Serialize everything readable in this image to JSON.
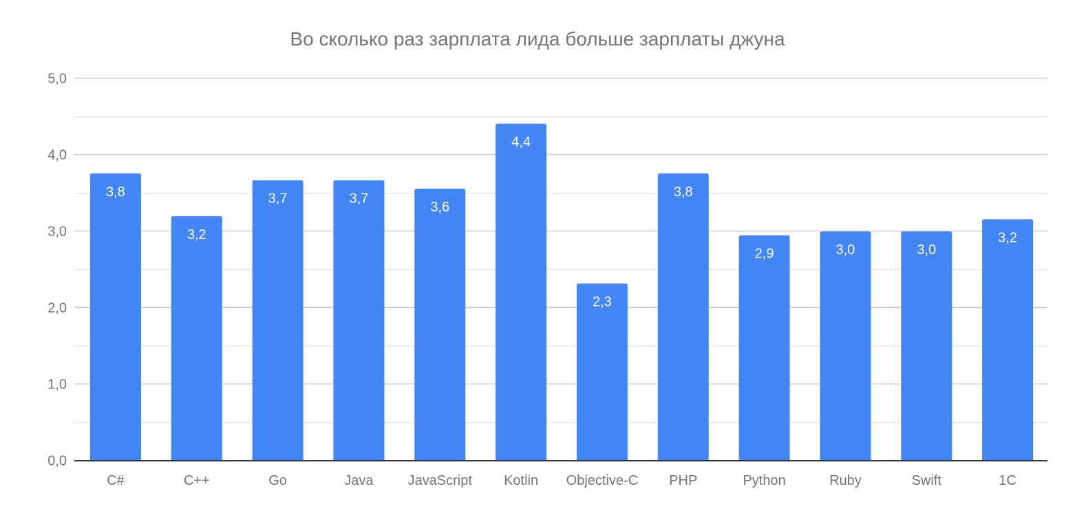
{
  "chart_data": {
    "type": "bar",
    "title": "Во сколько раз зарплата лида больше зарплаты джуна",
    "xlabel": "",
    "ylabel": "",
    "categories": [
      "C#",
      "C++",
      "Go",
      "Java",
      "JavaScript",
      "Kotlin",
      "Objective-C",
      "PHP",
      "Python",
      "Ruby",
      "Swift",
      "1C"
    ],
    "values": [
      3.75,
      3.19,
      3.66,
      3.66,
      3.55,
      4.4,
      2.31,
      3.75,
      2.94,
      2.99,
      2.99,
      3.15
    ],
    "data_labels": [
      "3,8",
      "3,2",
      "3,7",
      "3,7",
      "3,6",
      "4,4",
      "2,3",
      "3,8",
      "2,9",
      "3,0",
      "3,0",
      "3,2"
    ],
    "ylim": [
      0,
      5
    ],
    "yticks": [
      0,
      1,
      2,
      3,
      4,
      5
    ],
    "ytick_labels": [
      "0,0",
      "1,0",
      "2,0",
      "3,0",
      "4,0",
      "5,0"
    ],
    "minor_gridlines": [
      0.5,
      1.5,
      2.5,
      3.5,
      4.5
    ],
    "grid": true,
    "legend": "none",
    "colors": {
      "bar": "#4285f4",
      "major_grid": "#cccccc",
      "minor_grid": "#e6e6e6",
      "baseline": "#333333",
      "text": "#757575",
      "data_label": "#ffffff"
    }
  }
}
